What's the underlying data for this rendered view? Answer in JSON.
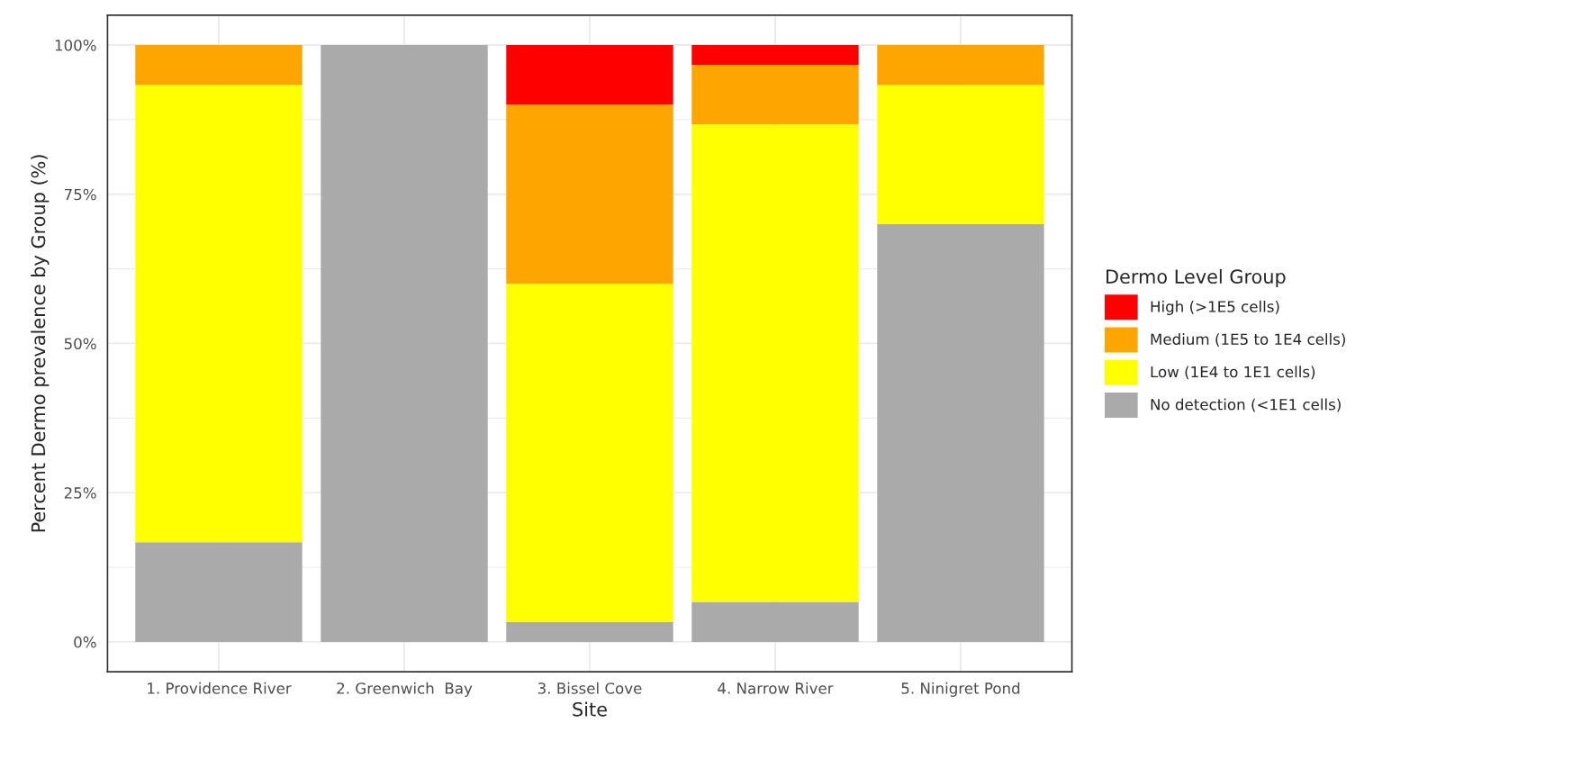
{
  "chart_data": {
    "type": "bar",
    "stacked": true,
    "xlabel": "Site",
    "ylabel": "Percent Dermo prevalence by Group (%)",
    "legend_title": "Dermo Level Group",
    "legend": "right",
    "grid": true,
    "categories": [
      "1. Providence River",
      "2. Greenwich  Bay",
      "3. Bissel Cove",
      "4. Narrow River",
      "5. Ninigret Pond"
    ],
    "ylim": [
      -5,
      105
    ],
    "yticks": [
      {
        "value": 0,
        "label": "0%"
      },
      {
        "value": 25,
        "label": "25%"
      },
      {
        "value": 50,
        "label": "50%"
      },
      {
        "value": 75,
        "label": "75%"
      },
      {
        "value": 100,
        "label": "100%"
      }
    ],
    "series": [
      {
        "name": "No detection (<1E1 cells)",
        "color": "#aaaaaa",
        "values": [
          16.7,
          100,
          3.3,
          6.7,
          70
        ]
      },
      {
        "name": "Low (1E4 to 1E1 cells)",
        "color": "#ffff00",
        "values": [
          76.6,
          0,
          56.7,
          80,
          23.3
        ]
      },
      {
        "name": "Medium (1E5 to 1E4 cells)",
        "color": "#ffa500",
        "values": [
          6.7,
          0,
          30,
          10,
          6.7
        ]
      },
      {
        "name": "High (>1E5 cells)",
        "color": "#ff0000",
        "values": [
          0,
          0,
          10,
          3.3,
          0
        ]
      }
    ]
  }
}
